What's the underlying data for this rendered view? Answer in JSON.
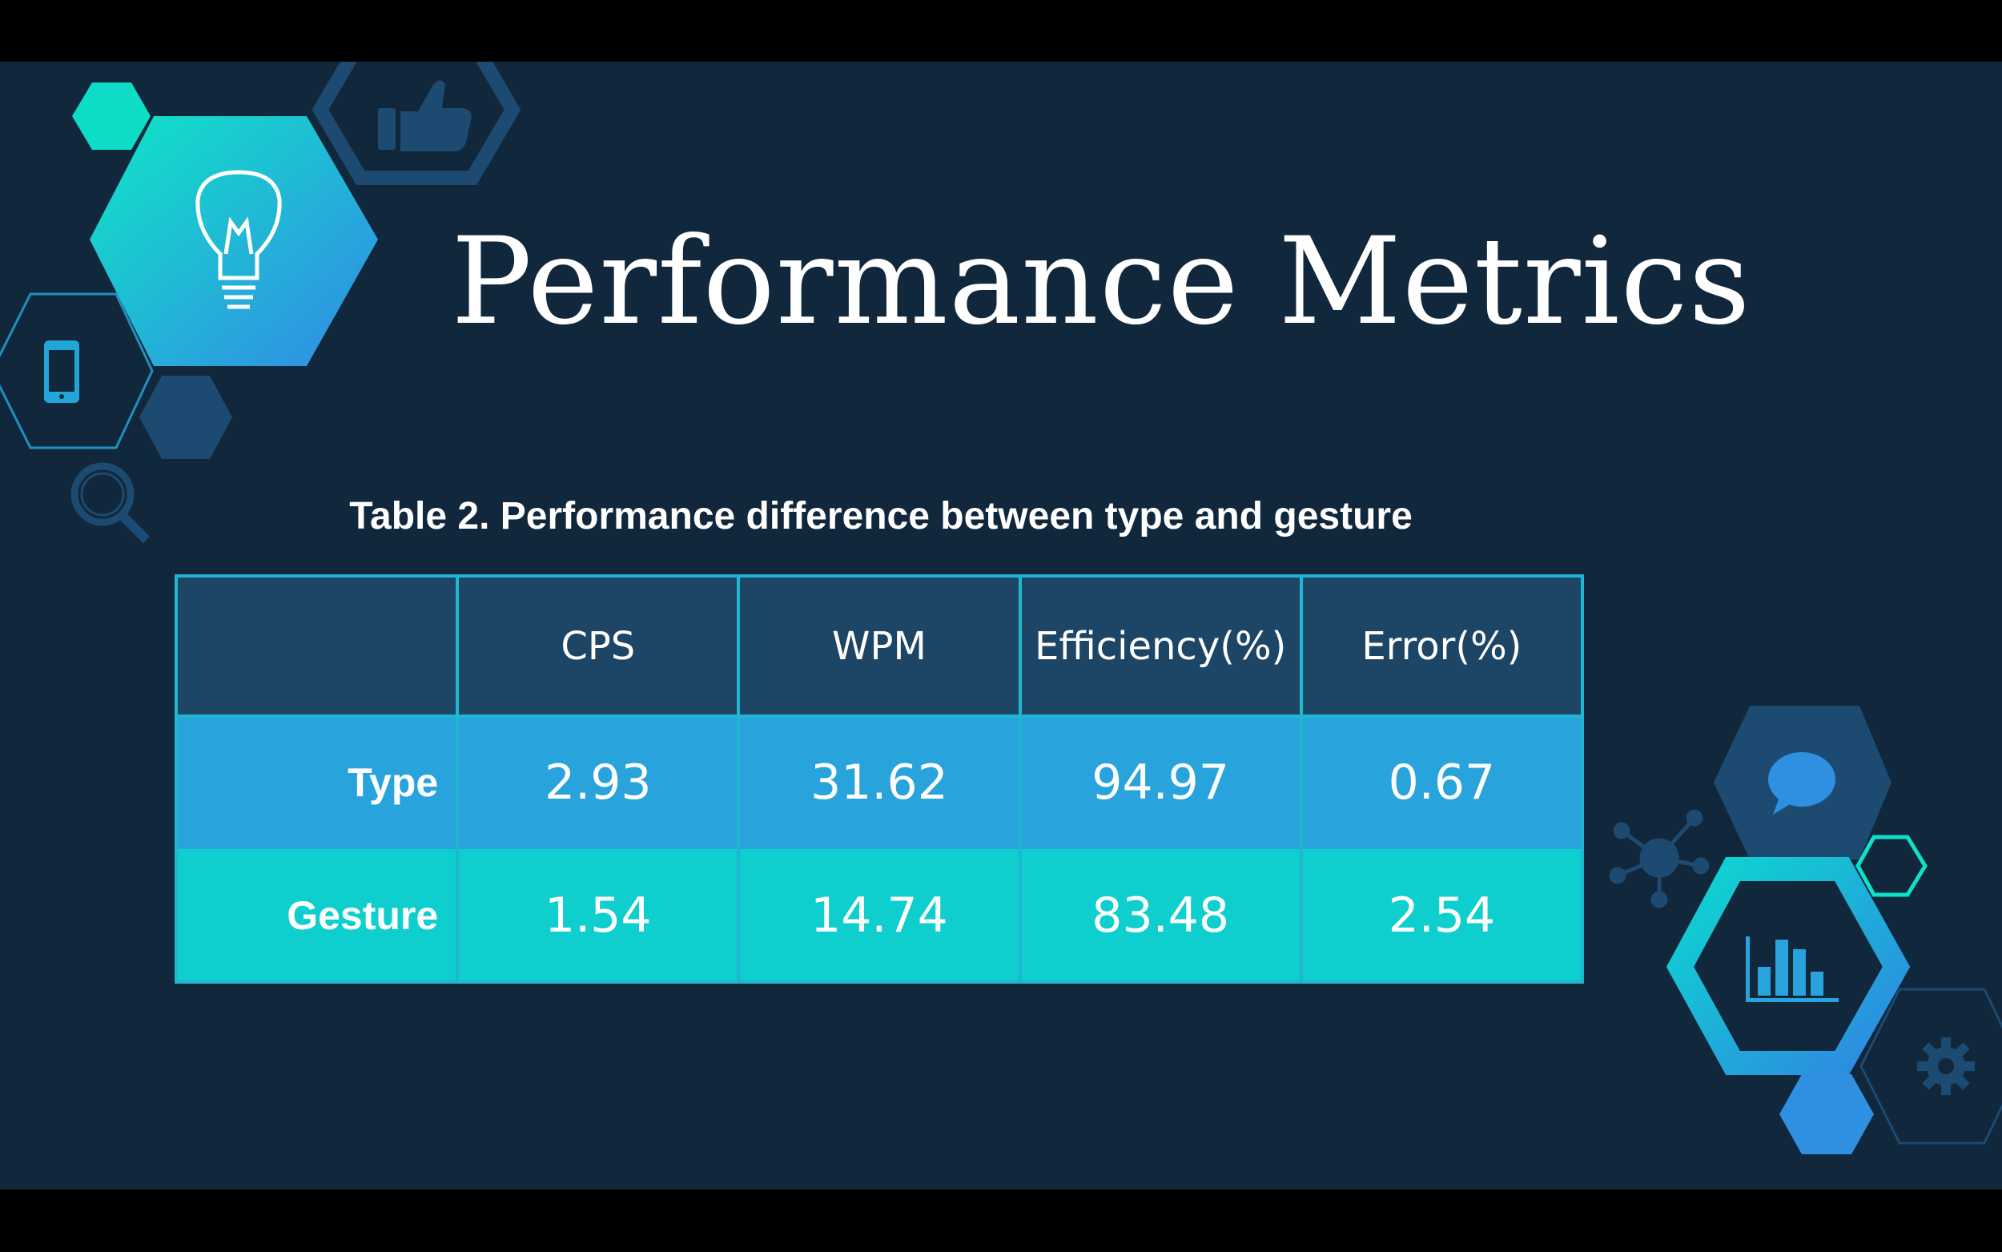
{
  "slide": {
    "title": "Performance Metrics",
    "caption": "Table 2. Performance difference between type and gesture"
  },
  "table": {
    "headers": [
      "",
      "CPS",
      "WPM",
      "Efficiency(%)",
      "Error(%)"
    ],
    "rows": [
      {
        "label": "Type",
        "values": [
          "2.93",
          "31.62",
          "94.97",
          "0.67"
        ]
      },
      {
        "label": "Gesture",
        "values": [
          "1.54",
          "14.74",
          "83.48",
          "2.54"
        ]
      }
    ]
  },
  "colors": {
    "background": "#10273c",
    "header_row": "#1c4566",
    "type_row": "#29a3dc",
    "gesture_row": "#0ecece",
    "table_border": "#1fb6d0",
    "accent_teal": "#0fe0c8",
    "accent_blue": "#2f8fe0"
  },
  "icons": [
    "lightbulb-icon",
    "thumbs-up-icon",
    "smartphone-icon",
    "magnifier-icon",
    "speech-bubble-icon",
    "network-icon",
    "bar-chart-icon",
    "gear-icon"
  ]
}
